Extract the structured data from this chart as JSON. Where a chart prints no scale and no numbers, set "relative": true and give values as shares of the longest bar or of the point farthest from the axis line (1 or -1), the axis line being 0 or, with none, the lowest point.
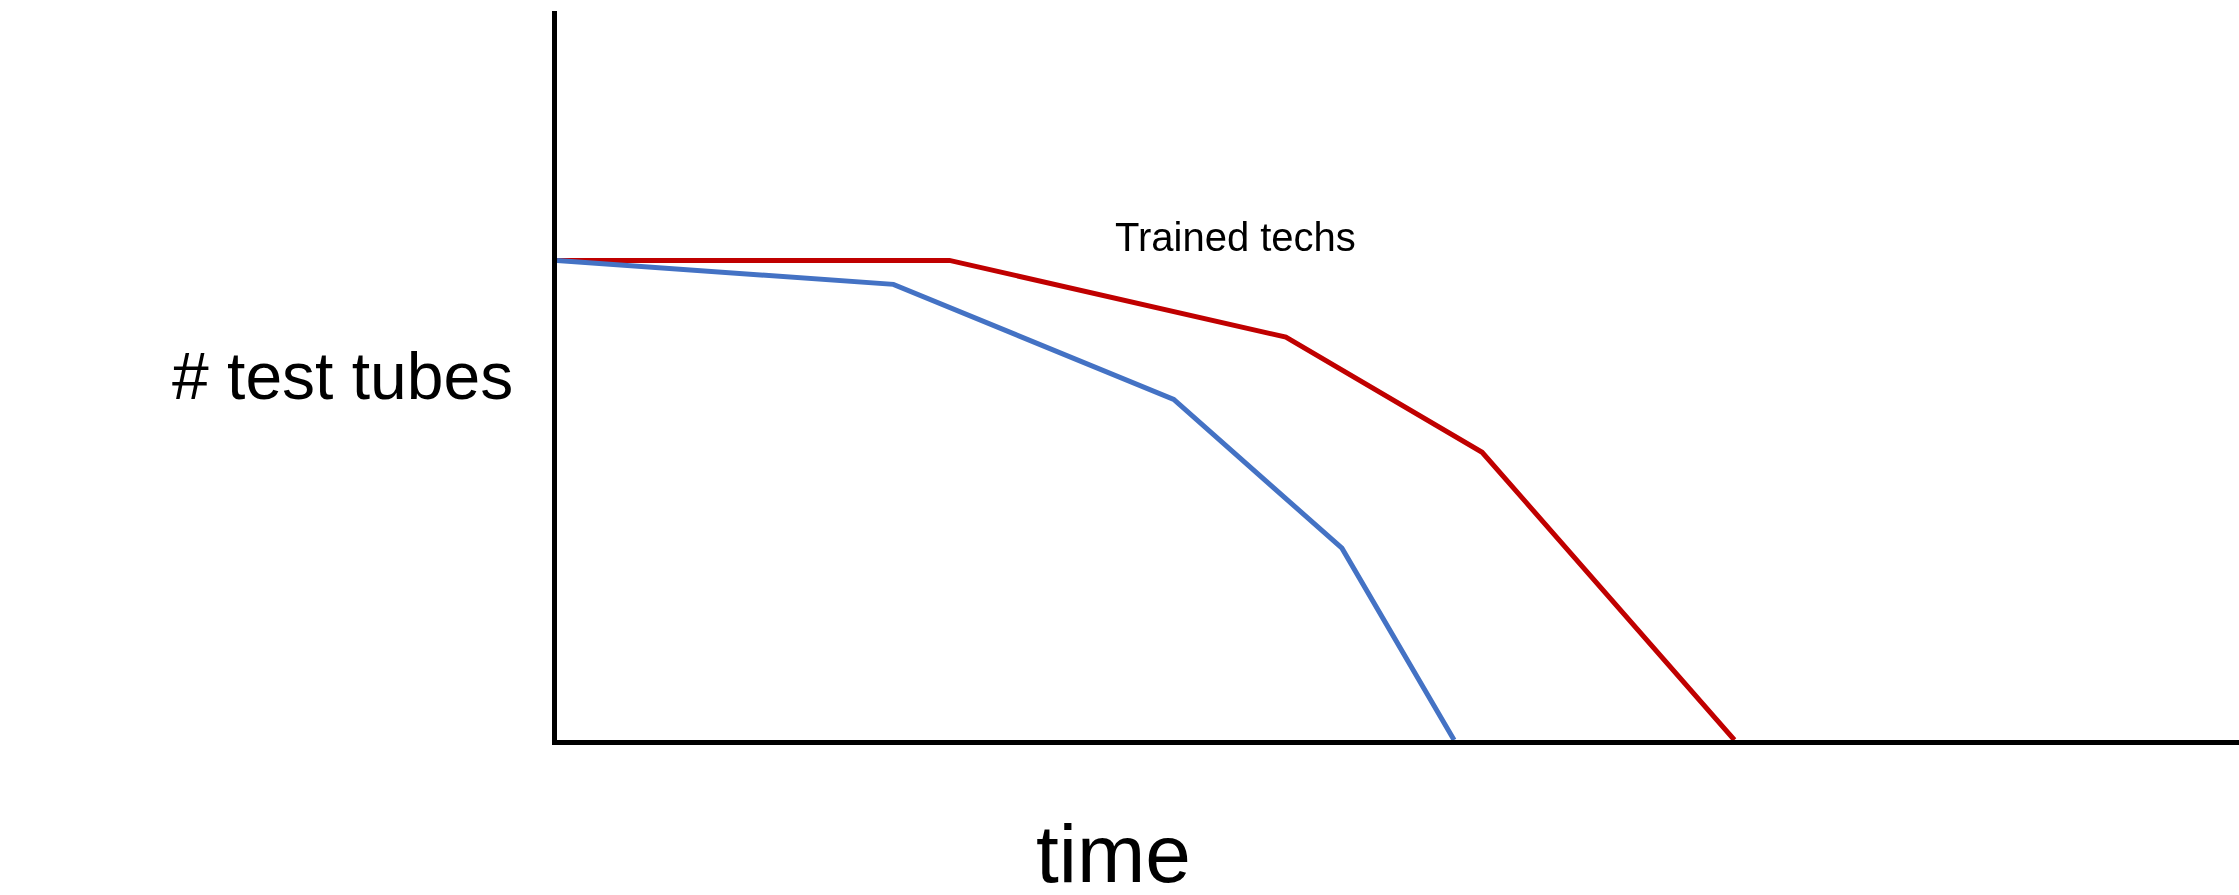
{
  "chart_data": {
    "type": "line",
    "xlabel": "time",
    "ylabel": "# test tubes",
    "relative": true,
    "legend": false,
    "marker": "none",
    "line_style": "solid",
    "categories": [
      null,
      null,
      null,
      null,
      null,
      null,
      null,
      null,
      null,
      null,
      null,
      null,
      null,
      null,
      null,
      null,
      null,
      null,
      null,
      null,
      null,
      null,
      null,
      null,
      null,
      null,
      null,
      null,
      null,
      null,
      null,
      null,
      null,
      null,
      null,
      null,
      null,
      null,
      null,
      null,
      null,
      null,
      null,
      null,
      null,
      null,
      null,
      null,
      null,
      null,
      null,
      null,
      null,
      null,
      null,
      null,
      null,
      null,
      null,
      null,
      null
    ],
    "series": [
      {
        "name": "Trained techs",
        "color": "#c00000",
        "values": [
          1,
          null,
          null,
          null,
          null,
          null,
          null,
          null,
          null,
          null,
          null,
          null,
          null,
          null,
          1,
          null,
          null,
          null,
          null,
          null,
          null,
          null,
          null,
          null,
          null,
          null,
          0.84,
          null,
          null,
          null,
          null,
          null,
          null,
          0.6,
          null,
          null,
          null,
          null,
          null,
          null,
          null,
          null,
          0,
          null,
          null,
          null,
          null,
          null,
          null,
          null,
          null,
          null,
          null,
          null,
          null,
          null,
          null,
          null,
          null,
          null,
          null
        ]
      },
      {
        "color": "#4472c4",
        "values": [
          1,
          null,
          null,
          null,
          null,
          null,
          null,
          null,
          null,
          null,
          null,
          null,
          0.95,
          null,
          null,
          null,
          null,
          null,
          null,
          null,
          null,
          null,
          0.71,
          null,
          null,
          null,
          null,
          null,
          0.4,
          null,
          null,
          null,
          0,
          null,
          null,
          null,
          null,
          null,
          null,
          null,
          null,
          null,
          null,
          null,
          null,
          null,
          null,
          null,
          null,
          null,
          null,
          null,
          null,
          null,
          null,
          null,
          null,
          null,
          null,
          null,
          null
        ]
      }
    ]
  }
}
